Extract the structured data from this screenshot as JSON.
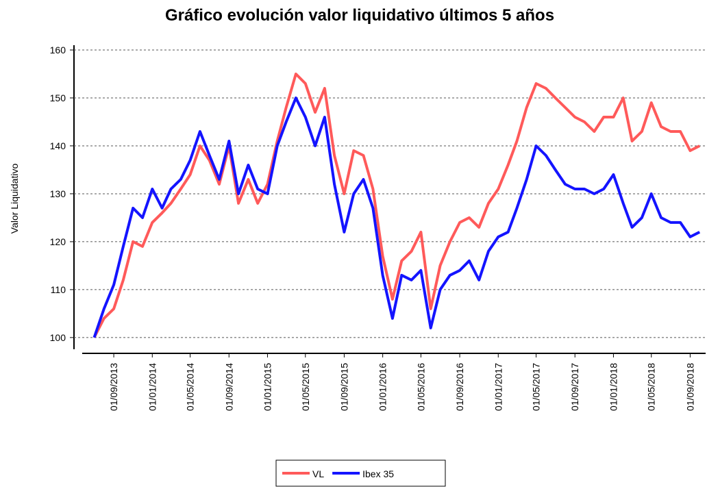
{
  "chart_data": {
    "type": "line",
    "title": "Gráfico evolución valor liquidativo últimos 5 años",
    "y_label": "Valor Liquidativo",
    "x": [
      "01/07/2013",
      "01/08/2013",
      "01/09/2013",
      "01/10/2013",
      "01/11/2013",
      "01/12/2013",
      "01/01/2014",
      "01/02/2014",
      "01/03/2014",
      "01/04/2014",
      "01/05/2014",
      "01/06/2014",
      "01/07/2014",
      "01/08/2014",
      "01/09/2014",
      "01/10/2014",
      "01/11/2014",
      "01/12/2014",
      "01/01/2015",
      "01/02/2015",
      "01/03/2015",
      "01/04/2015",
      "01/05/2015",
      "01/06/2015",
      "01/07/2015",
      "01/08/2015",
      "01/09/2015",
      "01/10/2015",
      "01/11/2015",
      "01/12/2015",
      "01/01/2016",
      "01/02/2016",
      "01/03/2016",
      "01/04/2016",
      "01/05/2016",
      "01/06/2016",
      "01/07/2016",
      "01/08/2016",
      "01/09/2016",
      "01/10/2016",
      "01/11/2016",
      "01/12/2016",
      "01/01/2017",
      "01/02/2017",
      "01/03/2017",
      "01/04/2017",
      "01/05/2017",
      "01/06/2017",
      "01/07/2017",
      "01/08/2017",
      "01/09/2017",
      "01/10/2017",
      "01/11/2017",
      "01/12/2017",
      "01/01/2018",
      "01/02/2018",
      "01/03/2018",
      "01/04/2018",
      "01/05/2018",
      "01/06/2018",
      "01/07/2018",
      "01/08/2018",
      "01/09/2018",
      "01/10/2018"
    ],
    "series": [
      {
        "name": "VL",
        "color": "#ff5a5a",
        "values": [
          100,
          104,
          106,
          112,
          120,
          119,
          124,
          126,
          128,
          131,
          134,
          140,
          137,
          132,
          140,
          128,
          133,
          128,
          132,
          141,
          148,
          155,
          153,
          147,
          152,
          138,
          130,
          139,
          138,
          131,
          117,
          108,
          116,
          118,
          122,
          106,
          115,
          120,
          124,
          125,
          123,
          128,
          131,
          136,
          141,
          148,
          153,
          152,
          150,
          148,
          146,
          145,
          143,
          146,
          146,
          150,
          141,
          143,
          149,
          144,
          143,
          143,
          139,
          140
        ]
      },
      {
        "name": "Ibex 35",
        "color": "#1414ff",
        "values": [
          100,
          106,
          111,
          119,
          127,
          125,
          131,
          127,
          131,
          133,
          137,
          143,
          138,
          133,
          141,
          130,
          136,
          131,
          130,
          140,
          145,
          150,
          146,
          140,
          146,
          132,
          122,
          130,
          133,
          127,
          113,
          104,
          113,
          112,
          114,
          102,
          110,
          113,
          114,
          116,
          112,
          118,
          121,
          122,
          127,
          133,
          140,
          138,
          135,
          132,
          131,
          131,
          130,
          131,
          134,
          128,
          123,
          125,
          130,
          125,
          124,
          124,
          121,
          122
        ]
      }
    ],
    "xlim": [
      "24/05/2013",
      "20/10/2018"
    ],
    "xticks": [
      "01/09/2013",
      "01/01/2014",
      "01/05/2014",
      "01/09/2014",
      "01/01/2015",
      "01/05/2015",
      "01/09/2015",
      "01/01/2016",
      "01/05/2016",
      "01/09/2016",
      "01/01/2017",
      "01/05/2017",
      "01/09/2017",
      "01/01/2018",
      "01/05/2018",
      "01/09/2018"
    ],
    "ylim": [
      96.7,
      161
    ],
    "yticks": [
      100,
      110,
      120,
      130,
      140,
      150,
      160
    ],
    "grid": true
  }
}
